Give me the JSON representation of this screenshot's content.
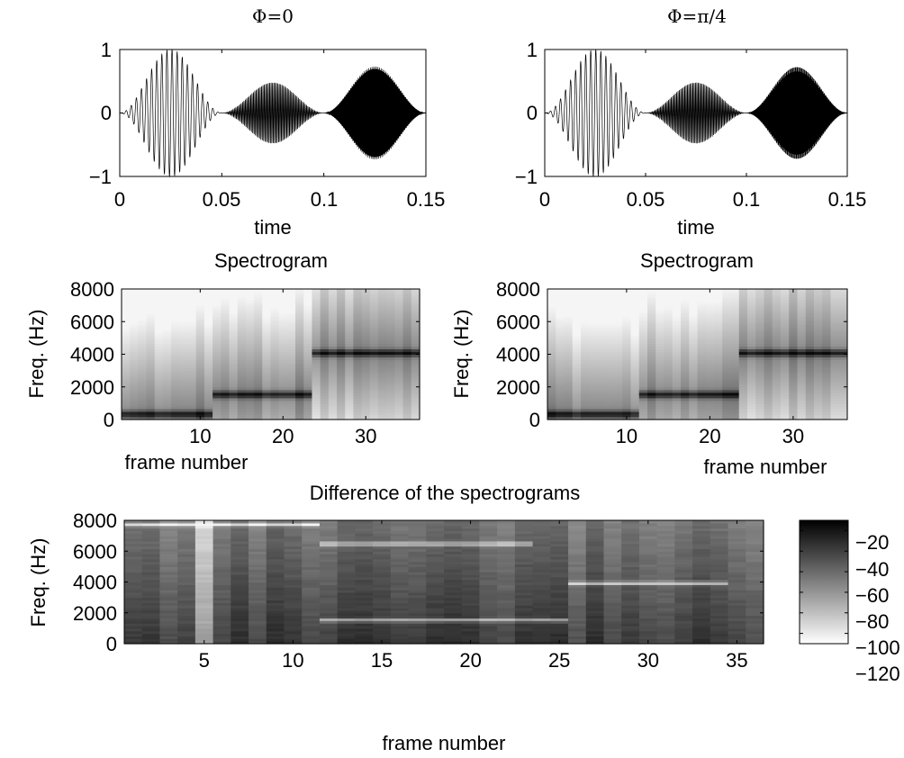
{
  "chart_data": [
    {
      "type": "line",
      "title": "Φ=0",
      "xlabel": "time",
      "ylabel": "",
      "xlim": [
        0,
        0.15
      ],
      "ylim": [
        -1,
        1
      ],
      "xticks": [
        0,
        0.05,
        0.1,
        0.15
      ],
      "xtick_labels": [
        "0",
        "0.05",
        "0.1",
        "0.15"
      ],
      "yticks": [
        -1,
        0,
        1
      ],
      "ytick_labels": [
        "−1",
        "0",
        "1"
      ],
      "phase": 0,
      "segments": [
        {
          "t_start": 0.0,
          "t_end": 0.05,
          "frequency_hz": 400,
          "peak_amplitude": 1.0
        },
        {
          "t_start": 0.05,
          "t_end": 0.1,
          "frequency_hz": 1500,
          "peak_amplitude": 0.48
        },
        {
          "t_start": 0.1,
          "t_end": 0.15,
          "frequency_hz": 4000,
          "peak_amplitude": 0.73
        }
      ]
    },
    {
      "type": "line",
      "title": "Φ=π/4",
      "xlabel": "time",
      "ylabel": "",
      "xlim": [
        0,
        0.15
      ],
      "ylim": [
        -1,
        1
      ],
      "xticks": [
        0,
        0.05,
        0.1,
        0.15
      ],
      "xtick_labels": [
        "0",
        "0.05",
        "0.1",
        "0.15"
      ],
      "yticks": [
        -1,
        0,
        1
      ],
      "ytick_labels": [
        "−1",
        "0",
        "1"
      ],
      "phase": 0.785,
      "segments": [
        {
          "t_start": 0.0,
          "t_end": 0.05,
          "frequency_hz": 400,
          "peak_amplitude": 1.0
        },
        {
          "t_start": 0.05,
          "t_end": 0.1,
          "frequency_hz": 1500,
          "peak_amplitude": 0.48
        },
        {
          "t_start": 0.1,
          "t_end": 0.15,
          "frequency_hz": 4000,
          "peak_amplitude": 0.73
        }
      ]
    },
    {
      "type": "heatmap",
      "title": "Spectrogram",
      "xlabel": "frame number",
      "ylabel": "Freq. (Hz)",
      "xlim": [
        0.5,
        36.5
      ],
      "ylim": [
        0,
        8000
      ],
      "xticks": [
        10,
        20,
        30
      ],
      "yticks": [
        0,
        2000,
        4000,
        6000,
        8000
      ],
      "frames": 36,
      "tone_ridges": [
        {
          "frame_start": 1,
          "frame_end": 12,
          "frequency_hz": 350
        },
        {
          "frame_start": 12,
          "frame_end": 24,
          "frequency_hz": 1550
        },
        {
          "frame_start": 24,
          "frame_end": 36,
          "frequency_hz": 4100
        }
      ]
    },
    {
      "type": "heatmap",
      "title": "Spectrogram",
      "xlabel": "frame number",
      "ylabel": "Freq. (Hz)",
      "xlim": [
        0.5,
        36.5
      ],
      "ylim": [
        0,
        8000
      ],
      "xticks": [
        10,
        20,
        30
      ],
      "yticks": [
        0,
        2000,
        4000,
        6000,
        8000
      ],
      "frames": 36,
      "tone_ridges": [
        {
          "frame_start": 1,
          "frame_end": 12,
          "frequency_hz": 350
        },
        {
          "frame_start": 12,
          "frame_end": 24,
          "frequency_hz": 1550
        },
        {
          "frame_start": 24,
          "frame_end": 36,
          "frequency_hz": 4100
        }
      ]
    },
    {
      "type": "heatmap",
      "title": "Difference of the spectrograms",
      "xlabel": "frame number",
      "ylabel": "Freq. (Hz)",
      "xlim": [
        0.5,
        36.5
      ],
      "ylim": [
        0,
        8000
      ],
      "xticks": [
        5,
        10,
        15,
        20,
        25,
        30,
        35
      ],
      "yticks": [
        0,
        2000,
        4000,
        6000,
        8000
      ],
      "frames": 36,
      "light_lines": [
        {
          "frame_start": 1,
          "frame_end": 11,
          "frequency_hz": 7750
        },
        {
          "frame_start": 12,
          "frame_end": 23,
          "frequency_hz": 6500
        },
        {
          "frame_start": 12,
          "frame_end": 25,
          "frequency_hz": 1550
        },
        {
          "frame_start": 26,
          "frame_end": 34,
          "frequency_hz": 3950
        }
      ],
      "colorbar": {
        "ticks": [
          -20,
          -40,
          -60,
          -80,
          -100,
          -120
        ],
        "tick_labels": [
          "−20",
          "−40",
          "−60",
          "−80",
          "−100",
          "−120"
        ],
        "range": [
          -130,
          -10
        ],
        "colormap": "gray"
      }
    }
  ]
}
